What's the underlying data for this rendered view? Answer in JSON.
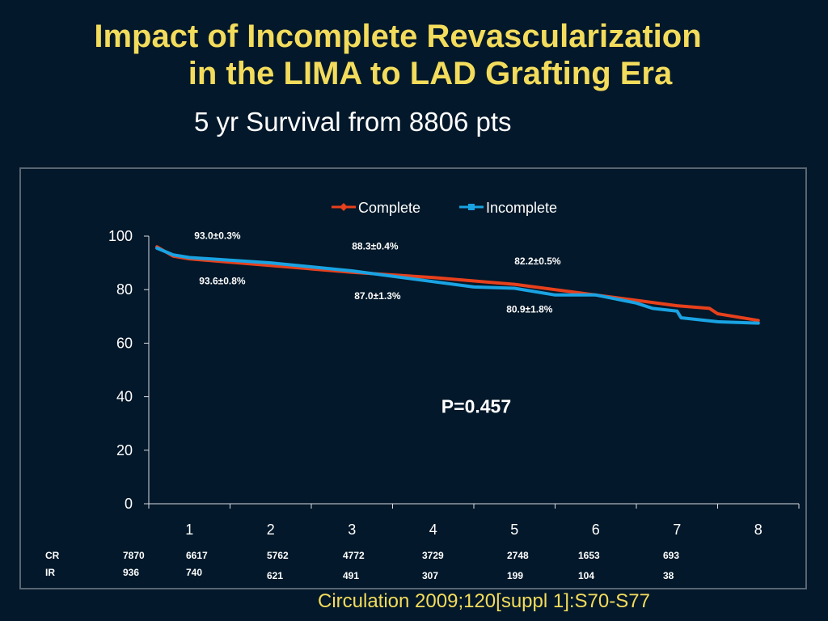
{
  "slide": {
    "title_line1": "Impact of Incomplete Revascularization",
    "title_line2": "in the LIMA to LAD Grafting Era",
    "subtitle": "5 yr Survival from 8806 pts",
    "citation": "Circulation 2009;120[suppl 1]:S70-S77"
  },
  "chart_data": {
    "type": "line",
    "x": [
      1,
      2,
      3,
      4,
      5,
      6,
      7,
      8
    ],
    "xlim": [
      0.5,
      8.5
    ],
    "ylim": [
      0,
      100
    ],
    "yticks": [
      0,
      20,
      40,
      60,
      80,
      100
    ],
    "grid": false,
    "legend_position": "top-center",
    "series": [
      {
        "name": "Complete",
        "color": "#e8401c",
        "points": [
          [
            0.6,
            96
          ],
          [
            0.8,
            92.5
          ],
          [
            1,
            91.5
          ],
          [
            2,
            89
          ],
          [
            3,
            86.5
          ],
          [
            4,
            84.5
          ],
          [
            5,
            82
          ],
          [
            6,
            78
          ],
          [
            7,
            74
          ],
          [
            7.4,
            73
          ],
          [
            7.5,
            71
          ],
          [
            8,
            68.5
          ]
        ]
      },
      {
        "name": "Incomplete",
        "color": "#1aa3e3",
        "points": [
          [
            0.6,
            95.5
          ],
          [
            0.8,
            93
          ],
          [
            1,
            92
          ],
          [
            2,
            90
          ],
          [
            3,
            87
          ],
          [
            4,
            83
          ],
          [
            4.5,
            81
          ],
          [
            5,
            80.5
          ],
          [
            5.5,
            78
          ],
          [
            6,
            78
          ],
          [
            6.5,
            75
          ],
          [
            6.7,
            73
          ],
          [
            7,
            72
          ],
          [
            7.05,
            69.5
          ],
          [
            7.5,
            68
          ],
          [
            8,
            67.5
          ]
        ]
      }
    ],
    "annotations": [
      {
        "text": "93.0±0.3%",
        "x": 1.06,
        "y": 99,
        "color": "#ffffff"
      },
      {
        "text": "88.3±0.4%",
        "x": 3,
        "y": 95,
        "color": "#ffffff"
      },
      {
        "text": "82.2±0.5%",
        "x": 5,
        "y": 89.5,
        "color": "#ffffff"
      },
      {
        "text": "93.6±0.8%",
        "x": 1.12,
        "y": 82,
        "color": "#ffffff"
      },
      {
        "text": "87.0±1.3%",
        "x": 3.03,
        "y": 76.5,
        "color": "#ffffff"
      },
      {
        "text": "80.9±1.8%",
        "x": 4.9,
        "y": 71.5,
        "color": "#ffffff"
      },
      {
        "text": "P=0.457",
        "x": 4.1,
        "y": 34,
        "color": "#ffffff",
        "big": true
      }
    ],
    "at_risk": {
      "rows": [
        {
          "label": "CR",
          "values": [
            "7870",
            "6617",
            "5762",
            "4772",
            "3729",
            "2748",
            "1653",
            "693"
          ]
        },
        {
          "label": "IR",
          "values": [
            "936",
            "740",
            "621",
            "491",
            "307",
            "199",
            "104",
            "38"
          ]
        }
      ]
    }
  }
}
